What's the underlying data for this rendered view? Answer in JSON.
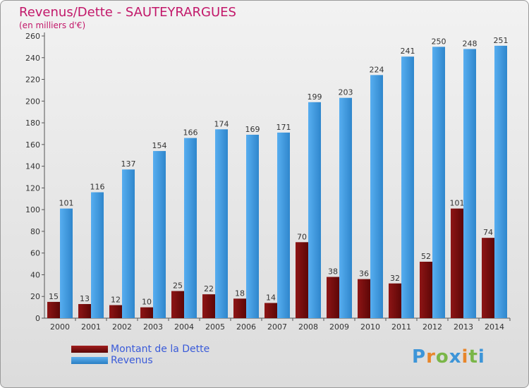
{
  "title": "Revenus/Dette - SAUTEYRARGUES",
  "subtitle": "(en milliers d'€)",
  "logo": {
    "text": "Proxiti"
  },
  "colors": {
    "dette": "#7a0f0f",
    "revenus": "#3d95d8",
    "title": "#c2186a",
    "legend_text": "#3a5bd9"
  },
  "chart_data": {
    "type": "bar",
    "categories": [
      "2000",
      "2001",
      "2002",
      "2003",
      "2004",
      "2005",
      "2006",
      "2007",
      "2008",
      "2009",
      "2010",
      "2011",
      "2012",
      "2013",
      "2014"
    ],
    "series": [
      {
        "name": "Montant de la Dette",
        "values": [
          15,
          13,
          12,
          10,
          25,
          22,
          18,
          14,
          70,
          38,
          36,
          32,
          52,
          101,
          74
        ]
      },
      {
        "name": "Revenus",
        "values": [
          101,
          116,
          137,
          154,
          166,
          174,
          169,
          171,
          199,
          203,
          224,
          241,
          250,
          248,
          251
        ]
      }
    ],
    "ylim": [
      0,
      260
    ],
    "yticks": [
      0,
      20,
      40,
      60,
      80,
      100,
      120,
      140,
      160,
      180,
      200,
      220,
      240,
      260
    ],
    "grid": false,
    "legend": "bottom-left"
  }
}
